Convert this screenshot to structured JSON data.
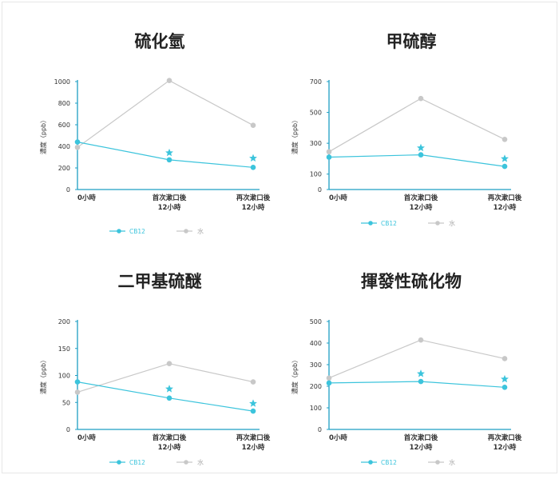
{
  "colors": {
    "cb12": "#3cc4dc",
    "water": "#c8c8c8",
    "axis": "#1e9fc4",
    "tick": "#333333"
  },
  "ylabel": "濃度（ppb）",
  "chart_data": [
    {
      "type": "line",
      "title": "硫化氫",
      "categories": [
        "0小時",
        "首次漱口後\n12小時",
        "再次漱口後\n12小時"
      ],
      "ylim": [
        0,
        1000
      ],
      "yticks": [
        0,
        200,
        400,
        600,
        800,
        1000
      ],
      "series": [
        {
          "name": "CB12",
          "values": [
            440,
            275,
            205
          ]
        },
        {
          "name": "水",
          "values": [
            390,
            1010,
            595
          ]
        }
      ],
      "stars": [
        340,
        290
      ],
      "legend": "bottom-left"
    },
    {
      "type": "line",
      "title": "甲硫醇",
      "categories": [
        "0小時",
        "首次漱口後\n12小時",
        "再次漱口後\n12小時"
      ],
      "ylim": [
        0,
        700
      ],
      "yticks": [
        0,
        100,
        300,
        500,
        700
      ],
      "series": [
        {
          "name": "CB12",
          "values": [
            210,
            225,
            150
          ]
        },
        {
          "name": "水",
          "values": [
            245,
            590,
            325
          ]
        }
      ],
      "stars": [
        270,
        200
      ],
      "legend": "bottom-left"
    },
    {
      "type": "line",
      "title": "二甲基硫醚",
      "categories": [
        "0小時",
        "首次漱口後\n12小時",
        "再次漱口後\n12小時"
      ],
      "ylim": [
        0,
        200
      ],
      "yticks": [
        0,
        50,
        100,
        150,
        200
      ],
      "series": [
        {
          "name": "CB12",
          "values": [
            88,
            58,
            34
          ]
        },
        {
          "name": "水",
          "values": [
            69,
            122,
            88
          ]
        }
      ],
      "stars": [
        75,
        48
      ],
      "legend": "bottom-left"
    },
    {
      "type": "line",
      "title": "揮發性硫化物",
      "categories": [
        "0小時",
        "首次漱口後\n12小時",
        "再次漱口後\n12小時"
      ],
      "ylim": [
        0,
        500
      ],
      "yticks": [
        0,
        100,
        200,
        300,
        400,
        500
      ],
      "series": [
        {
          "name": "CB12",
          "values": [
            215,
            222,
            195
          ]
        },
        {
          "name": "水",
          "values": [
            238,
            414,
            328
          ]
        }
      ],
      "stars": [
        258,
        233
      ],
      "legend": "bottom-left"
    }
  ]
}
